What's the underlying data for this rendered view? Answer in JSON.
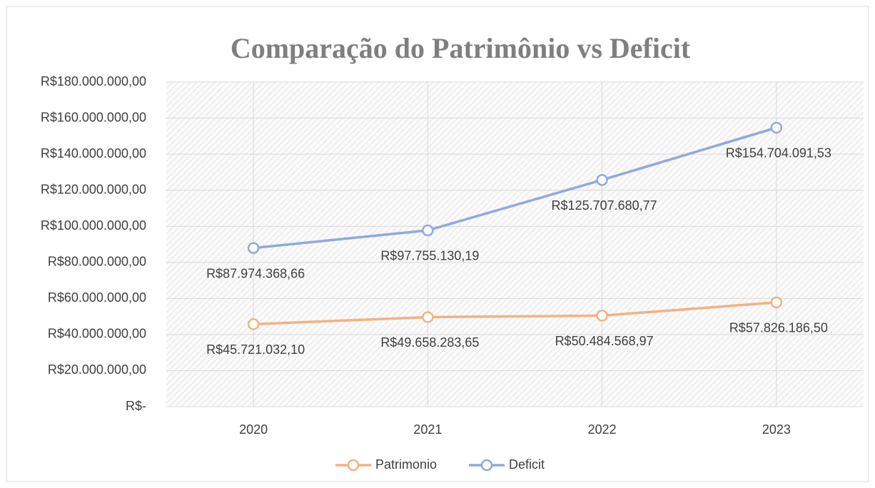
{
  "chart_data": {
    "type": "line",
    "title": "Comparação do Patrimônio vs Deficit",
    "categories": [
      "2020",
      "2021",
      "2022",
      "2023"
    ],
    "series": [
      {
        "name": "Patrimonio",
        "color": "#f4b183",
        "values": [
          45721032.1,
          49658283.65,
          50484568.97,
          57826186.5
        ],
        "value_labels": [
          "R$45.721.032,10",
          "R$49.658.283,65",
          "R$50.484.568,97",
          "R$57.826.186,50"
        ]
      },
      {
        "name": "Deficit",
        "color": "#8faadc",
        "values": [
          87974368.66,
          97755130.19,
          125707680.77,
          154704091.53
        ],
        "value_labels": [
          "R$87.974.368,66",
          "R$97.755.130,19",
          "R$125.707.680,77",
          "R$154.704.091,53"
        ]
      }
    ],
    "ylim": [
      0,
      180000000
    ],
    "yticks": [
      {
        "value": 0,
        "label": "R$-"
      },
      {
        "value": 20000000,
        "label": "R$20.000.000,00"
      },
      {
        "value": 40000000,
        "label": "R$40.000.000,00"
      },
      {
        "value": 60000000,
        "label": "R$60.000.000,00"
      },
      {
        "value": 80000000,
        "label": "R$80.000.000,00"
      },
      {
        "value": 100000000,
        "label": "R$100.000.000,00"
      },
      {
        "value": 120000000,
        "label": "R$120.000.000,00"
      },
      {
        "value": 140000000,
        "label": "R$140.000.000,00"
      },
      {
        "value": 160000000,
        "label": "R$160.000.000,00"
      },
      {
        "value": 180000000,
        "label": "R$180.000.000,00"
      }
    ],
    "grid": true,
    "legend": "bottom"
  }
}
